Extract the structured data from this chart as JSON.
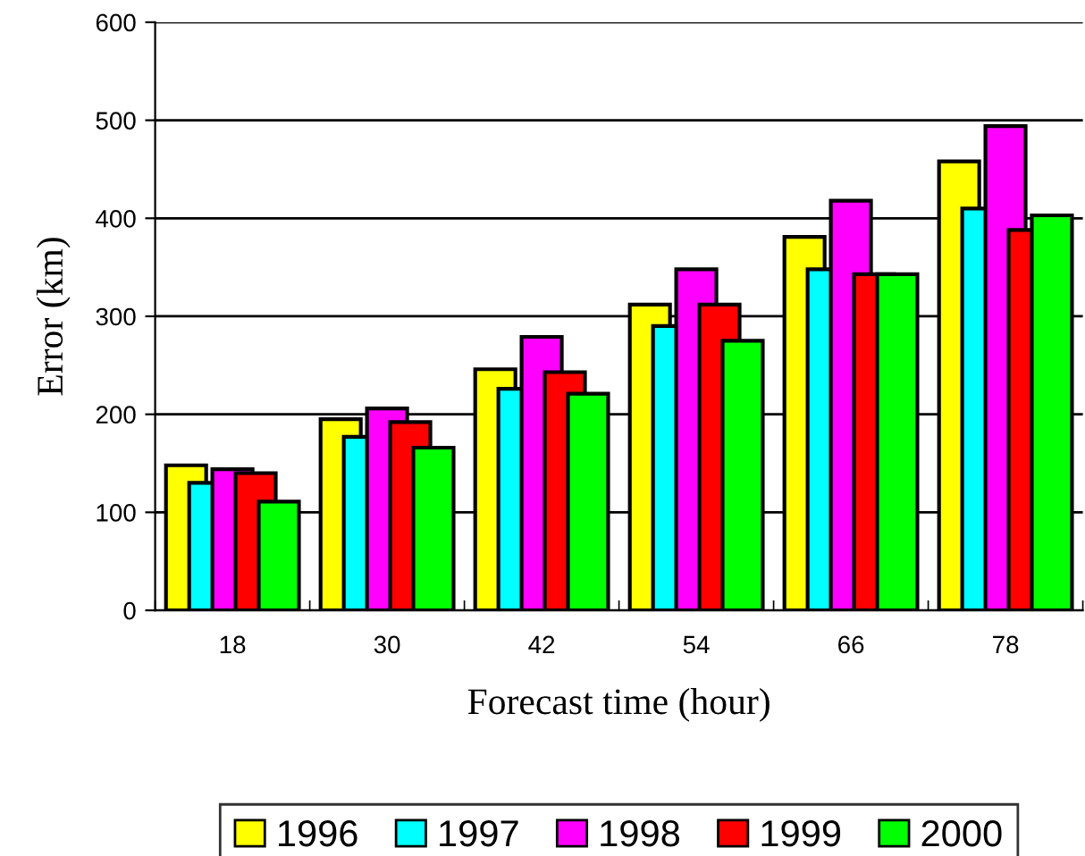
{
  "chart_data": {
    "type": "bar",
    "xlabel": "Forecast time (hour)",
    "ylabel": "Error (km)",
    "categories": [
      "18",
      "30",
      "42",
      "54",
      "66",
      "78"
    ],
    "series": [
      {
        "name": "1996",
        "color": "#ffff00",
        "values": [
          148,
          195,
          246,
          312,
          381,
          458
        ]
      },
      {
        "name": "1997",
        "color": "#00ffff",
        "values": [
          130,
          177,
          226,
          290,
          348,
          410
        ]
      },
      {
        "name": "1998",
        "color": "#ff00ff",
        "values": [
          144,
          206,
          279,
          348,
          418,
          494
        ]
      },
      {
        "name": "1999",
        "color": "#ff0000",
        "values": [
          140,
          192,
          243,
          312,
          343,
          388
        ]
      },
      {
        "name": "2000",
        "color": "#00ff00",
        "values": [
          111,
          166,
          221,
          275,
          343,
          403
        ]
      }
    ],
    "ylim": [
      0,
      600
    ],
    "yticks": [
      0,
      100,
      200,
      300,
      400,
      500,
      600
    ],
    "grid": "y",
    "legend": "bottom"
  }
}
